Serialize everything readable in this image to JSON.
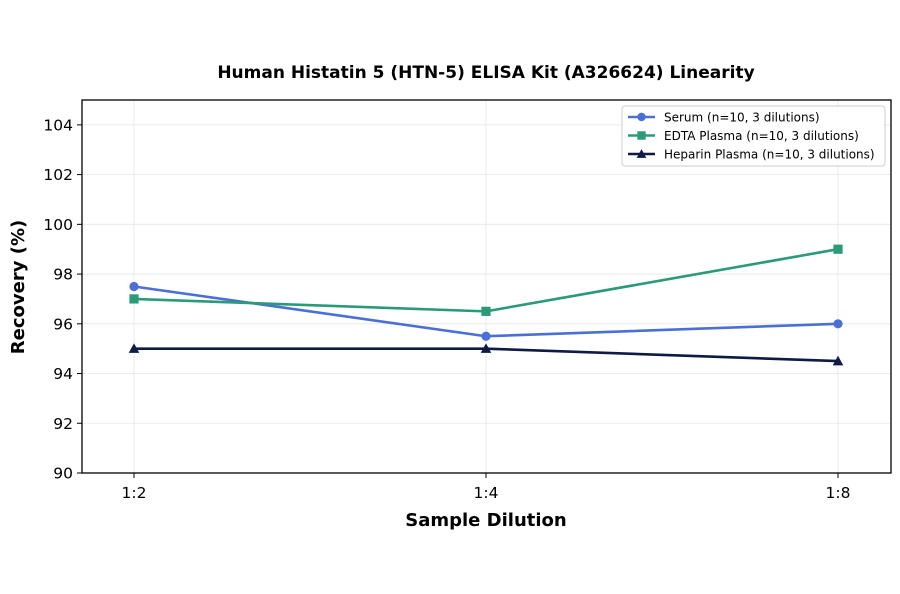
{
  "chart_data": {
    "type": "line",
    "title": "Human Histatin 5 (HTN-5) ELISA Kit (A326624) Linearity",
    "xlabel": "Sample Dilution",
    "ylabel": "Recovery (%)",
    "categories": [
      "1:2",
      "1:4",
      "1:8"
    ],
    "ylim": [
      90,
      105
    ],
    "yticks": [
      90,
      92,
      94,
      96,
      98,
      100,
      102,
      104
    ],
    "grid": true,
    "legend_position": "top-right",
    "series": [
      {
        "name": "Serum (n=10, 3 dilutions)",
        "values": [
          97.5,
          95.5,
          96.0
        ],
        "color": "#4a6fd6",
        "marker": "circle"
      },
      {
        "name": "EDTA Plasma (n=10, 3 dilutions)",
        "values": [
          97.0,
          96.5,
          99.0
        ],
        "color": "#2a9a78",
        "marker": "square"
      },
      {
        "name": "Heparin Plasma (n=10, 3 dilutions)",
        "values": [
          95.0,
          95.0,
          94.5
        ],
        "color": "#0d1b45",
        "marker": "triangle"
      }
    ]
  }
}
